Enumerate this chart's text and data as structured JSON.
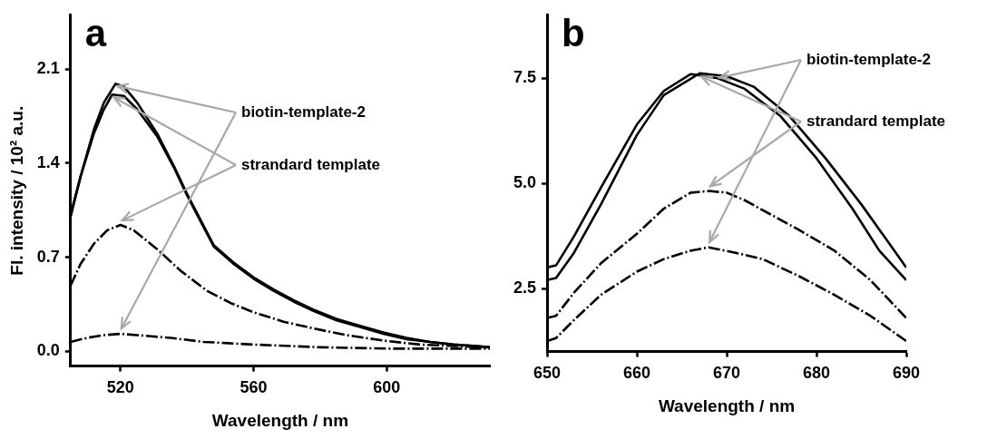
{
  "chart_data": [
    {
      "type": "line",
      "title": "a",
      "xlabel": "Wavelength / nm",
      "ylabel": "Fl. intensity / 10² a.u.",
      "xlim": [
        505,
        631
      ],
      "ylim": [
        -0.11,
        2.5
      ],
      "xticks": [
        520,
        560,
        600
      ],
      "yticks": [
        {
          "value": 0,
          "label": "0.0"
        },
        0.7,
        1.4,
        2.1
      ],
      "grid": false,
      "legend": false,
      "marker": "none",
      "annotations": [
        {
          "text": "biotin-template-2",
          "x": 518.5,
          "y": 1.99
        },
        {
          "text": "strandard template",
          "x": 517.5,
          "y": 1.91
        }
      ],
      "series": [
        {
          "color": "#000000",
          "line_style": "solid",
          "x": [
            505,
            508,
            512,
            515,
            518.5,
            521,
            525,
            531,
            536,
            540,
            544,
            548,
            554,
            560,
            566,
            572,
            578,
            585,
            592,
            599,
            606,
            613,
            620,
            626,
            631
          ],
          "values": [
            1.02,
            1.3,
            1.65,
            1.85,
            1.99,
            1.97,
            1.85,
            1.62,
            1.38,
            1.17,
            0.98,
            0.79,
            0.66,
            0.55,
            0.46,
            0.38,
            0.31,
            0.24,
            0.19,
            0.14,
            0.1,
            0.07,
            0.05,
            0.04,
            0.03
          ]
        },
        {
          "color": "#000000",
          "line_style": "solid",
          "x": [
            505,
            508,
            512,
            515,
            517.5,
            521,
            525,
            531,
            536,
            540,
            544,
            548,
            554,
            560,
            566,
            572,
            578,
            585,
            592,
            599,
            606,
            613,
            620,
            626,
            631
          ],
          "values": [
            1.0,
            1.3,
            1.62,
            1.8,
            1.91,
            1.9,
            1.8,
            1.6,
            1.37,
            1.16,
            0.97,
            0.78,
            0.65,
            0.54,
            0.45,
            0.37,
            0.3,
            0.23,
            0.18,
            0.13,
            0.09,
            0.07,
            0.05,
            0.04,
            0.03
          ]
        },
        {
          "color": "#000000",
          "line_style": "dashed",
          "x": [
            505,
            508,
            512,
            516,
            520,
            524,
            531,
            538,
            546,
            553,
            560,
            569,
            578,
            588,
            599,
            610,
            620,
            631
          ],
          "values": [
            0.49,
            0.65,
            0.8,
            0.9,
            0.94,
            0.9,
            0.76,
            0.6,
            0.45,
            0.36,
            0.29,
            0.22,
            0.17,
            0.12,
            0.08,
            0.05,
            0.04,
            0.03
          ]
        },
        {
          "color": "#000000",
          "line_style": "dashed",
          "x": [
            505,
            510,
            515,
            520,
            525,
            535,
            545,
            560,
            580,
            600,
            620,
            631
          ],
          "values": [
            0.07,
            0.1,
            0.12,
            0.13,
            0.12,
            0.1,
            0.07,
            0.05,
            0.03,
            0.02,
            0.02,
            0.02
          ]
        }
      ]
    },
    {
      "type": "line",
      "title": "b",
      "xlabel": "Wavelength / nm",
      "xlim": [
        650,
        690
      ],
      "ylim": [
        1.0,
        9.0
      ],
      "xticks": [
        650,
        660,
        670,
        680,
        690
      ],
      "yticks": [
        2.5,
        {
          "value": 5,
          "label": "5.0"
        },
        7.5
      ],
      "grid": false,
      "legend": false,
      "marker": "none",
      "annotations": [
        {
          "text": "biotin-template-2",
          "x": 669,
          "y": 7.55
        },
        {
          "text": "strandard template",
          "x": 667,
          "y": 7.6
        }
      ],
      "series": [
        {
          "color": "#000000",
          "line_style": "solid",
          "x": [
            650,
            651,
            653,
            656,
            660,
            663,
            666,
            669,
            672,
            676,
            680,
            684,
            687,
            690
          ],
          "values": [
            3.0,
            3.05,
            3.74,
            4.9,
            6.4,
            7.2,
            7.6,
            7.5,
            7.25,
            6.6,
            5.6,
            4.4,
            3.4,
            2.7
          ]
        },
        {
          "color": "#000000",
          "line_style": "solid",
          "x": [
            650,
            651,
            653,
            656,
            660,
            663,
            667,
            670,
            673,
            677,
            681,
            685,
            688,
            690
          ],
          "values": [
            2.7,
            2.75,
            3.35,
            4.5,
            6.15,
            7.1,
            7.62,
            7.55,
            7.3,
            6.6,
            5.6,
            4.5,
            3.6,
            3.0
          ]
        },
        {
          "color": "#000000",
          "line_style": "dashed",
          "x": [
            650,
            651,
            653,
            656,
            660,
            663,
            666,
            668,
            670,
            672,
            675,
            678,
            682,
            686,
            690
          ],
          "values": [
            1.8,
            1.85,
            2.4,
            3.1,
            3.8,
            4.4,
            4.78,
            4.82,
            4.78,
            4.6,
            4.25,
            3.9,
            3.4,
            2.7,
            1.8
          ]
        },
        {
          "color": "#000000",
          "line_style": "dashed",
          "x": [
            650,
            651,
            653,
            656,
            660,
            663,
            666,
            668,
            671,
            674,
            678,
            682,
            686,
            690
          ],
          "values": [
            1.25,
            1.32,
            1.75,
            2.35,
            2.9,
            3.2,
            3.4,
            3.48,
            3.35,
            3.2,
            2.8,
            2.35,
            1.85,
            1.25
          ]
        }
      ]
    }
  ]
}
